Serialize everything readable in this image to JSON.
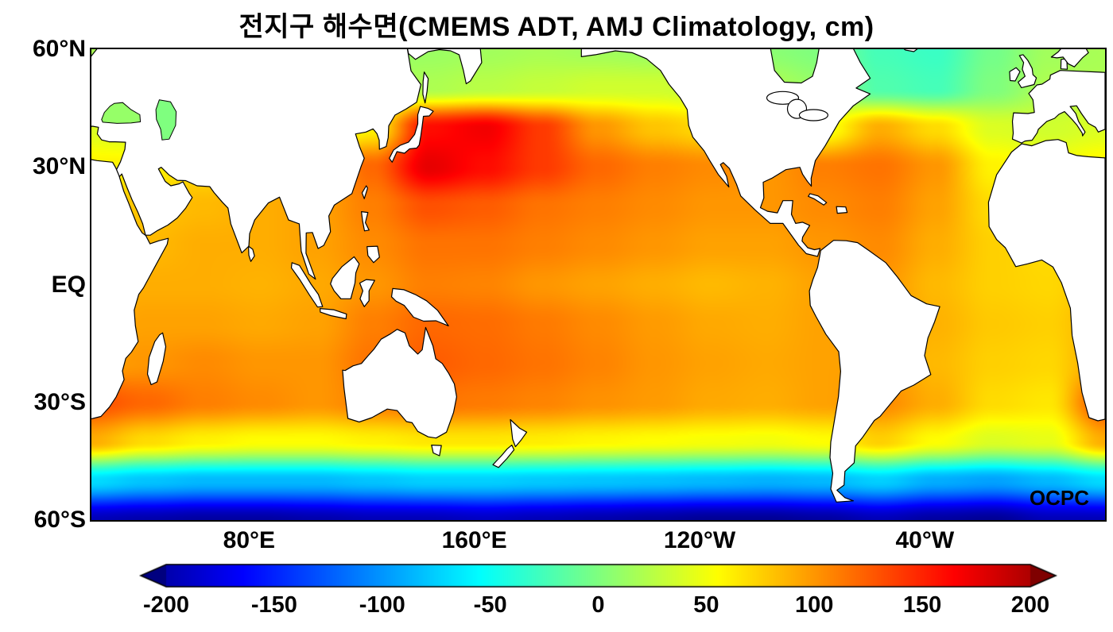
{
  "title": "전지구 해수면(CMEMS ADT, AMJ Climatology, cm)",
  "watermark": "OCPC",
  "axes": {
    "y_ticks": [
      {
        "label": "60°N",
        "lat": 60
      },
      {
        "label": "30°N",
        "lat": 30
      },
      {
        "label": "EQ",
        "lat": 0
      },
      {
        "label": "30°S",
        "lat": -30
      },
      {
        "label": "60°S",
        "lat": -60
      }
    ],
    "x_ticks": [
      {
        "label": "80°E",
        "lon": 80
      },
      {
        "label": "160°E",
        "lon": 160
      },
      {
        "label": "120°W",
        "lon": 240
      },
      {
        "label": "40°W",
        "lon": 320
      }
    ]
  },
  "colorbar": {
    "unit": "cm",
    "min": -200,
    "max": 200,
    "colormap": "jet",
    "tick_values": [
      -200,
      -150,
      -100,
      -50,
      0,
      50,
      100,
      150,
      200
    ],
    "tick_labels": [
      "-200",
      "-150",
      "-100",
      "-50",
      "0",
      "50",
      "100",
      "150",
      "200"
    ]
  },
  "chart_data": {
    "type": "heatmap",
    "title": "전지구 해수면(CMEMS ADT, AMJ Climatology, cm)",
    "variable": "Sea surface height / Absolute Dynamic Topography, AMJ climatology",
    "units": "cm",
    "lat_range": [
      -60,
      60
    ],
    "colorbar_range": [
      -200,
      200
    ],
    "source_label": "OCPC",
    "grid": {
      "lats": [
        60,
        50,
        40,
        30,
        20,
        10,
        0,
        -10,
        -20,
        -30,
        -40,
        -50,
        -60
      ],
      "lons": [
        24,
        44,
        64,
        84,
        104,
        124,
        144,
        164,
        184,
        204,
        224,
        244,
        264,
        284,
        304,
        324,
        344,
        364,
        384
      ],
      "values": [
        [
          18,
          15,
          12,
          10,
          10,
          10,
          12,
          15,
          18,
          15,
          12,
          10,
          5,
          0,
          -25,
          -30,
          -5,
          15,
          18
        ],
        [
          20,
          18,
          15,
          12,
          12,
          15,
          20,
          25,
          30,
          35,
          35,
          30,
          20,
          10,
          -20,
          -25,
          0,
          20,
          20
        ],
        [
          40,
          35,
          30,
          30,
          35,
          60,
          160,
          170,
          140,
          100,
          80,
          70,
          60,
          50,
          90,
          70,
          40,
          35,
          40
        ],
        [
          60,
          60,
          70,
          80,
          90,
          120,
          175,
          160,
          140,
          120,
          110,
          105,
          100,
          110,
          115,
          100,
          60,
          50,
          60
        ],
        [
          75,
          80,
          85,
          90,
          95,
          110,
          130,
          125,
          115,
          110,
          105,
          100,
          100,
          105,
          110,
          95,
          70,
          60,
          75
        ],
        [
          80,
          85,
          90,
          90,
          95,
          105,
          115,
          115,
          110,
          105,
          100,
          95,
          95,
          100,
          105,
          90,
          75,
          70,
          80
        ],
        [
          85,
          90,
          90,
          88,
          92,
          100,
          110,
          108,
          100,
          95,
          90,
          85,
          88,
          95,
          100,
          85,
          75,
          72,
          85
        ],
        [
          90,
          95,
          95,
          92,
          95,
          110,
          120,
          118,
          112,
          105,
          98,
          92,
          90,
          95,
          100,
          88,
          78,
          75,
          90
        ],
        [
          95,
          100,
          105,
          100,
          100,
          115,
          125,
          120,
          115,
          108,
          100,
          95,
          92,
          95,
          98,
          85,
          75,
          72,
          95
        ],
        [
          130,
          120,
          110,
          105,
          100,
          110,
          115,
          112,
          108,
          102,
          98,
          92,
          90,
          95,
          105,
          90,
          70,
          65,
          130
        ],
        [
          90,
          70,
          60,
          55,
          55,
          60,
          65,
          65,
          62,
          58,
          55,
          52,
          50,
          55,
          75,
          55,
          40,
          45,
          90
        ],
        [
          -70,
          -80,
          -85,
          -85,
          -85,
          -80,
          -75,
          -75,
          -78,
          -80,
          -82,
          -85,
          -88,
          -85,
          -75,
          -90,
          -95,
          -85,
          -70
        ],
        [
          -195,
          -200,
          -205,
          -205,
          -200,
          -195,
          -195,
          -190,
          -195,
          -200,
          -205,
          -210,
          -210,
          -205,
          -195,
          -205,
          -210,
          -195,
          -195
        ]
      ]
    }
  }
}
